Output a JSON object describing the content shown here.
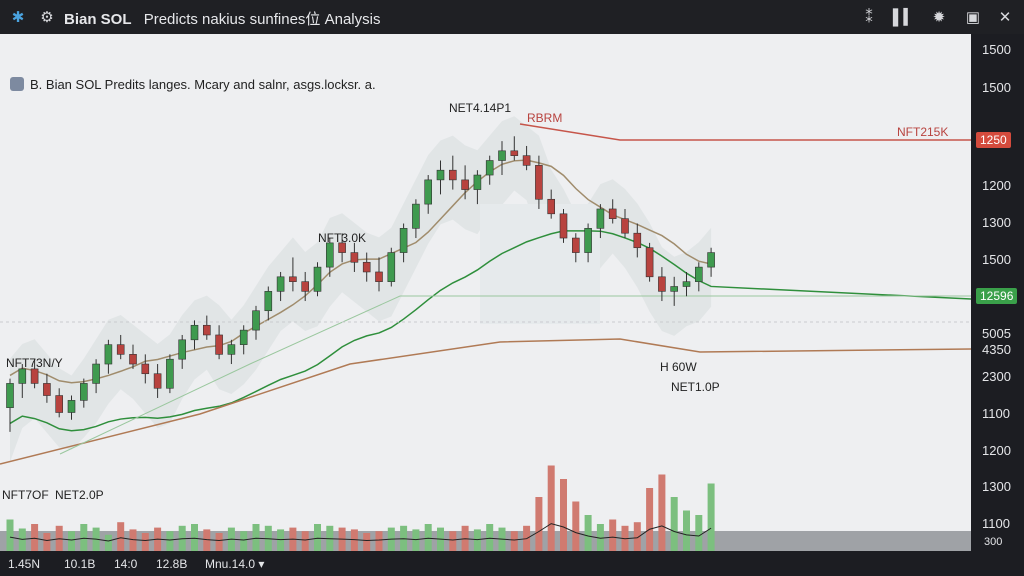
{
  "window": {
    "title_bold": "Bian SOL",
    "title_rest": "Predicts nakius sunfines位 Analysis",
    "controls": [
      "star-icon",
      "chart-icon",
      "settings-icon",
      "window-icon",
      "close-icon"
    ]
  },
  "chart": {
    "title": "B. Bian SOL Predits langes. Mcary and salnr, asgs.locksr. a.",
    "annotations": {
      "peak": "NET4.14P1",
      "mid": "NFT3.0K",
      "left": "NFT73N/Y",
      "bottom_left_1": "NFT7OF",
      "bottom_left_2": "NET2.0P",
      "right_low_1": "H 60W",
      "right_low_2": "NET1.0P",
      "red_line_label": "RBRM",
      "right_red": "NFT215K"
    },
    "price_axis": [
      "1500",
      "1500",
      "1250",
      "1200",
      "1300",
      "1500",
      "12596",
      "5005",
      "4350",
      "2300",
      "1100",
      "1200",
      "1300",
      "1100",
      "300"
    ],
    "tags": {
      "red": "1250",
      "green": "12596"
    },
    "colors": {
      "up": "#3f9a4f",
      "down": "#b8433f",
      "red_line": "#c6554a",
      "green_line": "#2f8f3c",
      "brown_line": "#b07a55",
      "tag_red": "#d44b3d",
      "tag_green": "#3aa04a"
    }
  },
  "bottom": {
    "labels": [
      "1.45N",
      "10.1B",
      "14:0",
      "12.8B",
      "Mnu.14.0 ▾"
    ]
  },
  "chart_data": {
    "type": "candlestick",
    "candles": [
      [
        1.0,
        1.12,
        0.9,
        1.1
      ],
      [
        1.1,
        1.18,
        1.04,
        1.16
      ],
      [
        1.16,
        1.2,
        1.08,
        1.1
      ],
      [
        1.1,
        1.14,
        1.02,
        1.05
      ],
      [
        1.05,
        1.08,
        0.96,
        0.98
      ],
      [
        0.98,
        1.05,
        0.95,
        1.03
      ],
      [
        1.03,
        1.12,
        1.0,
        1.1
      ],
      [
        1.1,
        1.2,
        1.06,
        1.18
      ],
      [
        1.18,
        1.28,
        1.14,
        1.26
      ],
      [
        1.26,
        1.3,
        1.2,
        1.22
      ],
      [
        1.22,
        1.26,
        1.16,
        1.18
      ],
      [
        1.18,
        1.22,
        1.1,
        1.14
      ],
      [
        1.14,
        1.18,
        1.04,
        1.08
      ],
      [
        1.08,
        1.22,
        1.06,
        1.2
      ],
      [
        1.2,
        1.3,
        1.16,
        1.28
      ],
      [
        1.28,
        1.36,
        1.24,
        1.34
      ],
      [
        1.34,
        1.38,
        1.28,
        1.3
      ],
      [
        1.3,
        1.34,
        1.2,
        1.22
      ],
      [
        1.22,
        1.28,
        1.18,
        1.26
      ],
      [
        1.26,
        1.34,
        1.22,
        1.32
      ],
      [
        1.32,
        1.42,
        1.28,
        1.4
      ],
      [
        1.4,
        1.5,
        1.36,
        1.48
      ],
      [
        1.48,
        1.56,
        1.44,
        1.54
      ],
      [
        1.54,
        1.62,
        1.48,
        1.52
      ],
      [
        1.52,
        1.56,
        1.44,
        1.48
      ],
      [
        1.48,
        1.6,
        1.46,
        1.58
      ],
      [
        1.58,
        1.7,
        1.54,
        1.68
      ],
      [
        1.68,
        1.72,
        1.6,
        1.64
      ],
      [
        1.64,
        1.68,
        1.56,
        1.6
      ],
      [
        1.6,
        1.64,
        1.52,
        1.56
      ],
      [
        1.56,
        1.62,
        1.48,
        1.52
      ],
      [
        1.52,
        1.66,
        1.5,
        1.64
      ],
      [
        1.64,
        1.76,
        1.6,
        1.74
      ],
      [
        1.74,
        1.86,
        1.7,
        1.84
      ],
      [
        1.84,
        1.96,
        1.8,
        1.94
      ],
      [
        1.94,
        2.02,
        1.88,
        1.98
      ],
      [
        1.98,
        2.04,
        1.9,
        1.94
      ],
      [
        1.94,
        2.0,
        1.86,
        1.9
      ],
      [
        1.9,
        1.98,
        1.84,
        1.96
      ],
      [
        1.96,
        2.04,
        1.92,
        2.02
      ],
      [
        2.02,
        2.1,
        1.96,
        2.06
      ],
      [
        2.06,
        2.12,
        2.02,
        2.04
      ],
      [
        2.04,
        2.08,
        1.98,
        2.0
      ],
      [
        2.0,
        2.04,
        1.82,
        1.86
      ],
      [
        1.86,
        1.9,
        1.78,
        1.8
      ],
      [
        1.8,
        1.82,
        1.68,
        1.7
      ],
      [
        1.7,
        1.72,
        1.6,
        1.64
      ],
      [
        1.64,
        1.76,
        1.6,
        1.74
      ],
      [
        1.74,
        1.84,
        1.7,
        1.82
      ],
      [
        1.82,
        1.86,
        1.76,
        1.78
      ],
      [
        1.78,
        1.82,
        1.7,
        1.72
      ],
      [
        1.72,
        1.76,
        1.62,
        1.66
      ],
      [
        1.66,
        1.68,
        1.52,
        1.54
      ],
      [
        1.54,
        1.58,
        1.44,
        1.48
      ],
      [
        1.48,
        1.54,
        1.42,
        1.5
      ],
      [
        1.5,
        1.56,
        1.46,
        1.52
      ],
      [
        1.52,
        1.6,
        1.48,
        1.58
      ],
      [
        1.58,
        1.66,
        1.54,
        1.64
      ]
    ],
    "volume": [
      0.35,
      0.25,
      0.3,
      0.2,
      0.28,
      0.22,
      0.3,
      0.26,
      0.18,
      0.32,
      0.24,
      0.2,
      0.26,
      0.22,
      0.28,
      0.3,
      0.24,
      0.2,
      0.26,
      0.22,
      0.3,
      0.28,
      0.24,
      0.26,
      0.22,
      0.3,
      0.28,
      0.26,
      0.24,
      0.2,
      0.22,
      0.26,
      0.28,
      0.24,
      0.3,
      0.26,
      0.22,
      0.28,
      0.24,
      0.3,
      0.26,
      0.22,
      0.28,
      0.6,
      0.95,
      0.8,
      0.55,
      0.4,
      0.3,
      0.35,
      0.28,
      0.32,
      0.7,
      0.85,
      0.6,
      0.45,
      0.4,
      0.75
    ]
  }
}
